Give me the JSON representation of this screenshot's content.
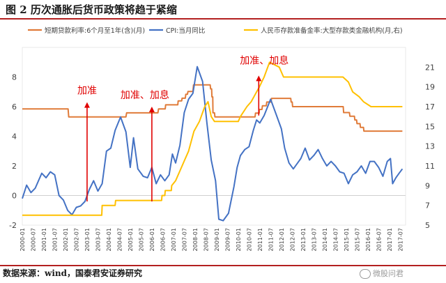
{
  "title": "图  2  历次通胀后货币政策将趋于紧缩",
  "source": "数据来源：wind，国泰君安证券研究",
  "watermark": "微股问君",
  "chart_data": {
    "type": "line",
    "legend": [
      "短期贷款利率:6个月至1年(含)(月)",
      "CPI:当月同比",
      "人民币存款准备金率:大型存款类金融机构(月,右)"
    ],
    "legend_position": "top",
    "colors": {
      "loan": "#E07B39",
      "cpi": "#4472C4",
      "rrr": "#FFC000",
      "arrow": "#E00000",
      "annotation": "#E00000"
    },
    "x_labels": [
      "2000-01",
      "2000-07",
      "2001-01",
      "2001-07",
      "2002-01",
      "2002-07",
      "2003-01",
      "2003-07",
      "2004-01",
      "2004-07",
      "2005-01",
      "2005-07",
      "2006-01",
      "2006-07",
      "2007-01",
      "2007-07",
      "2008-01",
      "2008-07",
      "2009-01",
      "2009-07",
      "2010-01",
      "2010-07",
      "2011-01",
      "2011-07",
      "2012-01",
      "2012-07",
      "2013-01",
      "2013-07",
      "2014-01",
      "2014-07",
      "2015-01",
      "2015-07",
      "2016-01",
      "2016-07",
      "2017-01",
      "2017-07"
    ],
    "y_left": {
      "min": -2,
      "max": 10,
      "ticks": [
        "-2",
        "0",
        "2",
        "4",
        "6",
        "8"
      ]
    },
    "y_right": {
      "min": 5,
      "max": 23,
      "ticks": [
        "5",
        "7",
        "9",
        "11",
        "13",
        "15",
        "17",
        "19",
        "21"
      ]
    },
    "series": [
      {
        "name": "短期贷款利率:6个月至1年(含)(月)",
        "axis": "left",
        "points": [
          [
            2000.0,
            5.85
          ],
          [
            2002.12,
            5.85
          ],
          [
            2002.15,
            5.31
          ],
          [
            2004.8,
            5.31
          ],
          [
            2004.83,
            5.58
          ],
          [
            2006.28,
            5.58
          ],
          [
            2006.31,
            5.85
          ],
          [
            2006.62,
            5.85
          ],
          [
            2006.64,
            6.12
          ],
          [
            2007.2,
            6.12
          ],
          [
            2007.22,
            6.39
          ],
          [
            2007.38,
            6.39
          ],
          [
            2007.4,
            6.57
          ],
          [
            2007.55,
            6.57
          ],
          [
            2007.57,
            6.84
          ],
          [
            2007.65,
            6.84
          ],
          [
            2007.67,
            7.02
          ],
          [
            2007.9,
            7.02
          ],
          [
            2007.93,
            7.47
          ],
          [
            2008.7,
            7.47
          ],
          [
            2008.72,
            7.2
          ],
          [
            2008.77,
            7.2
          ],
          [
            2008.78,
            6.66
          ],
          [
            2008.82,
            6.66
          ],
          [
            2008.83,
            5.58
          ],
          [
            2008.9,
            5.58
          ],
          [
            2008.92,
            5.31
          ],
          [
            2010.78,
            5.31
          ],
          [
            2010.8,
            5.56
          ],
          [
            2010.97,
            5.56
          ],
          [
            2010.98,
            5.81
          ],
          [
            2011.1,
            5.81
          ],
          [
            2011.12,
            6.06
          ],
          [
            2011.3,
            6.06
          ],
          [
            2011.32,
            6.31
          ],
          [
            2011.52,
            6.31
          ],
          [
            2011.54,
            6.56
          ],
          [
            2012.43,
            6.56
          ],
          [
            2012.45,
            6.31
          ],
          [
            2012.5,
            6.31
          ],
          [
            2012.52,
            6.0
          ],
          [
            2014.86,
            6.0
          ],
          [
            2014.88,
            5.6
          ],
          [
            2015.15,
            5.6
          ],
          [
            2015.17,
            5.35
          ],
          [
            2015.38,
            5.35
          ],
          [
            2015.4,
            5.1
          ],
          [
            2015.48,
            5.1
          ],
          [
            2015.5,
            4.85
          ],
          [
            2015.64,
            4.85
          ],
          [
            2015.66,
            4.6
          ],
          [
            2015.8,
            4.6
          ],
          [
            2015.82,
            4.35
          ],
          [
            2017.6,
            4.35
          ]
        ]
      },
      {
        "name": "CPI:当月同比",
        "axis": "left",
        "points": [
          [
            2000.0,
            -0.2
          ],
          [
            2000.2,
            0.7
          ],
          [
            2000.4,
            0.2
          ],
          [
            2000.6,
            0.5
          ],
          [
            2000.9,
            1.5
          ],
          [
            2001.1,
            1.2
          ],
          [
            2001.3,
            1.6
          ],
          [
            2001.5,
            1.4
          ],
          [
            2001.7,
            0.0
          ],
          [
            2001.9,
            -0.3
          ],
          [
            2002.1,
            -1.0
          ],
          [
            2002.3,
            -1.3
          ],
          [
            2002.5,
            -0.8
          ],
          [
            2002.7,
            -0.7
          ],
          [
            2002.9,
            -0.4
          ],
          [
            2003.1,
            0.4
          ],
          [
            2003.3,
            1.0
          ],
          [
            2003.5,
            0.3
          ],
          [
            2003.7,
            0.8
          ],
          [
            2003.9,
            3.0
          ],
          [
            2004.1,
            3.2
          ],
          [
            2004.3,
            4.4
          ],
          [
            2004.55,
            5.3
          ],
          [
            2004.8,
            4.3
          ],
          [
            2005.0,
            1.9
          ],
          [
            2005.15,
            3.9
          ],
          [
            2005.35,
            1.8
          ],
          [
            2005.6,
            1.3
          ],
          [
            2005.8,
            1.2
          ],
          [
            2006.0,
            1.9
          ],
          [
            2006.2,
            0.8
          ],
          [
            2006.4,
            1.4
          ],
          [
            2006.6,
            1.0
          ],
          [
            2006.8,
            1.4
          ],
          [
            2006.95,
            2.8
          ],
          [
            2007.1,
            2.2
          ],
          [
            2007.3,
            3.4
          ],
          [
            2007.5,
            5.6
          ],
          [
            2007.7,
            6.5
          ],
          [
            2007.9,
            6.9
          ],
          [
            2008.1,
            8.7
          ],
          [
            2008.2,
            8.3
          ],
          [
            2008.35,
            7.7
          ],
          [
            2008.55,
            4.9
          ],
          [
            2008.75,
            2.4
          ],
          [
            2008.95,
            1.0
          ],
          [
            2009.1,
            -1.6
          ],
          [
            2009.3,
            -1.7
          ],
          [
            2009.55,
            -1.2
          ],
          [
            2009.8,
            0.6
          ],
          [
            2009.95,
            1.9
          ],
          [
            2010.1,
            2.7
          ],
          [
            2010.3,
            3.1
          ],
          [
            2010.5,
            3.3
          ],
          [
            2010.7,
            4.4
          ],
          [
            2010.85,
            5.1
          ],
          [
            2011.0,
            4.9
          ],
          [
            2011.2,
            5.4
          ],
          [
            2011.5,
            6.5
          ],
          [
            2011.75,
            5.5
          ],
          [
            2012.0,
            4.5
          ],
          [
            2012.15,
            3.2
          ],
          [
            2012.35,
            2.2
          ],
          [
            2012.55,
            1.8
          ],
          [
            2012.7,
            2.1
          ],
          [
            2012.9,
            2.5
          ],
          [
            2013.1,
            3.2
          ],
          [
            2013.3,
            2.4
          ],
          [
            2013.5,
            2.7
          ],
          [
            2013.7,
            3.1
          ],
          [
            2013.9,
            2.5
          ],
          [
            2014.1,
            2.0
          ],
          [
            2014.3,
            2.3
          ],
          [
            2014.5,
            2.0
          ],
          [
            2014.7,
            1.6
          ],
          [
            2014.9,
            1.5
          ],
          [
            2015.1,
            0.8
          ],
          [
            2015.3,
            1.4
          ],
          [
            2015.5,
            1.6
          ],
          [
            2015.7,
            2.0
          ],
          [
            2015.9,
            1.5
          ],
          [
            2016.1,
            2.3
          ],
          [
            2016.3,
            2.3
          ],
          [
            2016.5,
            1.9
          ],
          [
            2016.7,
            1.3
          ],
          [
            2016.9,
            2.3
          ],
          [
            2017.05,
            2.5
          ],
          [
            2017.15,
            0.8
          ],
          [
            2017.3,
            1.2
          ],
          [
            2017.45,
            1.5
          ],
          [
            2017.6,
            1.8
          ]
        ]
      },
      {
        "name": "人民币存款准备金率:大型存款类金融机构(月,右)",
        "axis": "right",
        "points": [
          [
            2000.0,
            6.0
          ],
          [
            2003.68,
            6.0
          ],
          [
            2003.7,
            7.0
          ],
          [
            2004.3,
            7.0
          ],
          [
            2004.32,
            7.5
          ],
          [
            2006.45,
            7.5
          ],
          [
            2006.47,
            8.0
          ],
          [
            2006.6,
            8.0
          ],
          [
            2006.62,
            8.5
          ],
          [
            2006.9,
            8.5
          ],
          [
            2006.92,
            9.0
          ],
          [
            2007.1,
            9.5
          ],
          [
            2007.3,
            10.5
          ],
          [
            2007.5,
            11.5
          ],
          [
            2007.7,
            12.5
          ],
          [
            2007.95,
            14.5
          ],
          [
            2008.2,
            15.5
          ],
          [
            2008.45,
            17.0
          ],
          [
            2008.6,
            17.5
          ],
          [
            2008.75,
            16.0
          ],
          [
            2008.9,
            15.5
          ],
          [
            2010.0,
            15.5
          ],
          [
            2010.1,
            16.0
          ],
          [
            2010.4,
            17.0
          ],
          [
            2010.6,
            17.5
          ],
          [
            2010.85,
            18.5
          ],
          [
            2010.98,
            19.0
          ],
          [
            2011.2,
            20.0
          ],
          [
            2011.45,
            21.5
          ],
          [
            2011.9,
            21.0
          ],
          [
            2012.1,
            20.0
          ],
          [
            2014.85,
            20.0
          ],
          [
            2015.1,
            19.5
          ],
          [
            2015.3,
            18.5
          ],
          [
            2015.6,
            18.0
          ],
          [
            2015.8,
            17.5
          ],
          [
            2016.15,
            17.0
          ],
          [
            2017.6,
            17.0
          ]
        ]
      }
    ],
    "annotations": [
      {
        "text": "加准",
        "x": 2003.0,
        "from": -0.4,
        "to": 6.3
      },
      {
        "text": "加准、加息",
        "x": 2006.0,
        "from": -0.4,
        "to": 6.0
      },
      {
        "text": "加准、加息",
        "x": 2010.95,
        "from": 5.4,
        "to": 8.1
      }
    ]
  }
}
